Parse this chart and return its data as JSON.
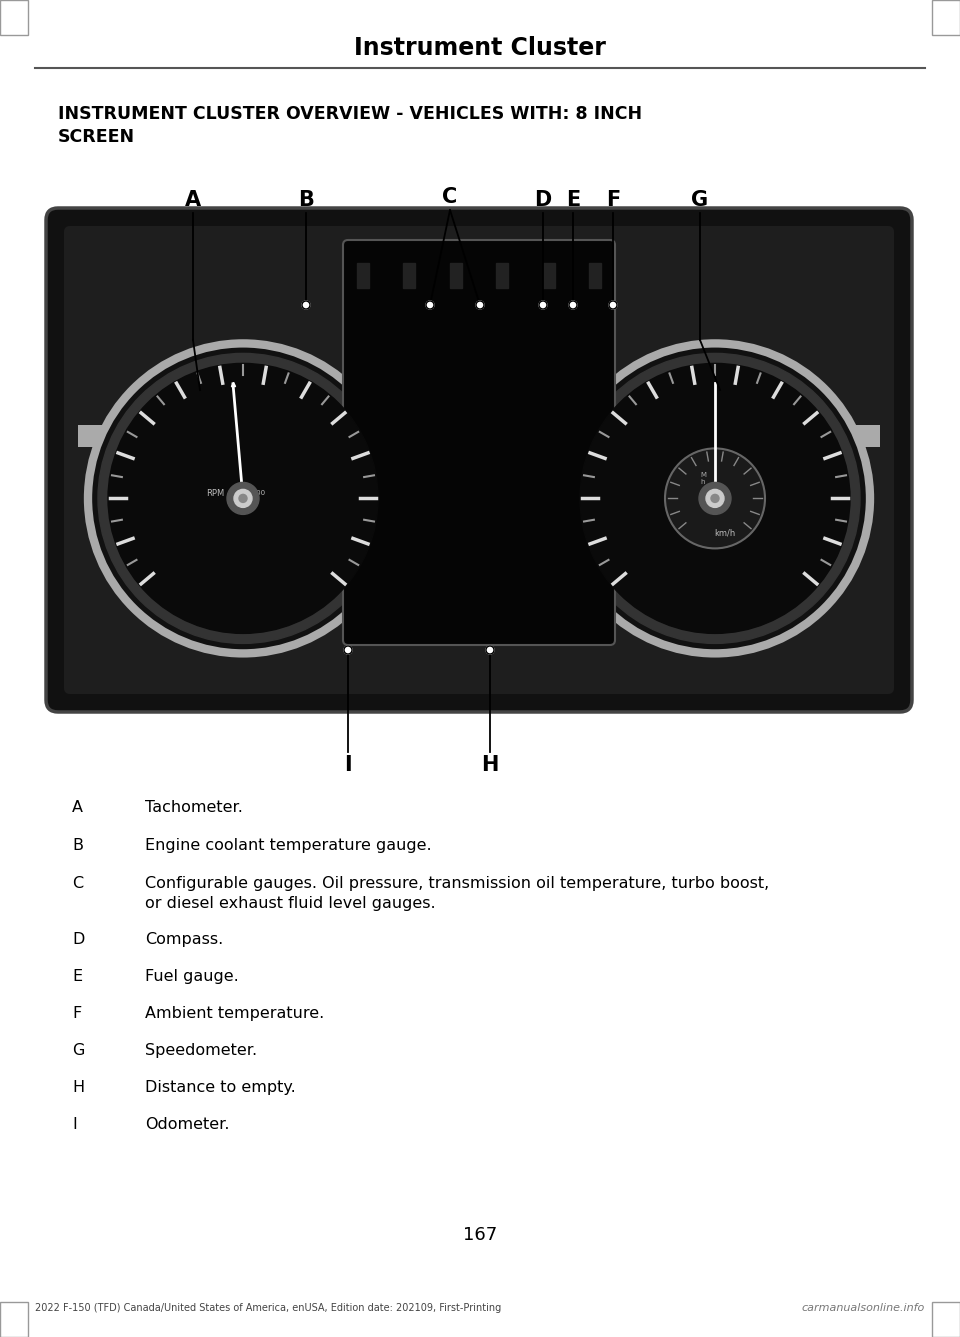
{
  "page_title": "Instrument Cluster",
  "section_title": "INSTRUMENT CLUSTER OVERVIEW - VEHICLES WITH: 8 INCH\nSCREEN",
  "page_number": "167",
  "footer_text": "2022 F-150 (TFD) Canada/United States of America, enUSA, Edition date: 202109, First-Printing",
  "watermark": "carmanualsonline.info",
  "descriptions": [
    [
      "A",
      "Tachometer."
    ],
    [
      "B",
      "Engine coolant temperature gauge."
    ],
    [
      "C",
      "Configurable gauges. Oil pressure, transmission oil temperature, turbo boost,\nor diesel exhaust fluid level gauges."
    ],
    [
      "D",
      "Compass."
    ],
    [
      "E",
      "Fuel gauge."
    ],
    [
      "F",
      "Ambient temperature."
    ],
    [
      "G",
      "Speedometer."
    ],
    [
      "H",
      "Distance to empty."
    ],
    [
      "I",
      "Odometer."
    ]
  ],
  "bg_color": "#ffffff",
  "text_color": "#000000",
  "header_line_color": "#555555",
  "cluster_bg": "#111111",
  "cluster_bezel": "#333333",
  "gauge_ring": "#888888",
  "gauge_dark": "#0a0a0a",
  "tick_major": "#cccccc",
  "tick_minor": "#888888",
  "hub_color": "#666666",
  "hub_inner": "#999999",
  "needle_color": "#ffffff",
  "panel_color": "#050505",
  "panel_edge": "#555555"
}
